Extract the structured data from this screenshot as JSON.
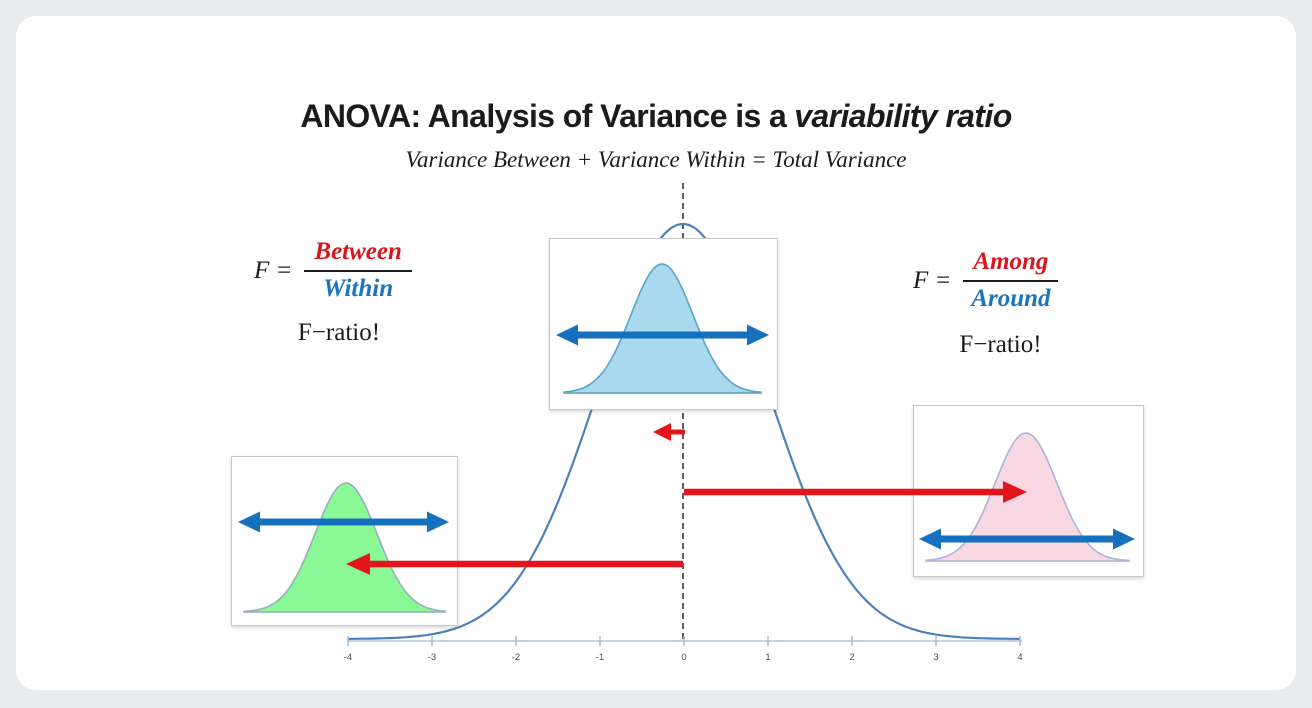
{
  "slide": {
    "title_main": "ANOVA: Analysis of Variance is a",
    "title_emphasis": "variability ratio",
    "subtitle": "Variance Between + Variance Within = Total Variance"
  },
  "formulas": {
    "left": {
      "lhs": "F =",
      "numerator": "Between",
      "denominator": "Within",
      "caption": "F−ratio!"
    },
    "right": {
      "lhs": "F =",
      "numerator": "Among",
      "denominator": "Around",
      "caption": "F−ratio!"
    }
  },
  "axis": {
    "ticks": [
      "-4",
      "-3",
      "-2",
      "-1",
      "0",
      "1",
      "2",
      "3",
      "4"
    ]
  },
  "colors": {
    "background": "#E9EBEF",
    "card": "#FFFFFF",
    "title_text": "#1B1B1B",
    "formula_red": "#D8171D",
    "formula_blue": "#1B75BC",
    "arrow_red": "#E2151B",
    "arrow_blue": "#1571BE",
    "curve_line": "#4E81BC",
    "dashed_line": "#4C4C4C",
    "axis_line": "#ACC5E2",
    "axis_tick": "#9FBADC",
    "tick_text": "#4D4D4D",
    "box_border": "#C6C8CA",
    "fill_blue": "#A9D9EC",
    "stroke_blue": "#5BA3CC",
    "fill_green": "#8BF896",
    "stroke_green": "#97AFBE",
    "fill_pink": "#F9D7E3",
    "stroke_pink": "#AAB6D9"
  }
}
